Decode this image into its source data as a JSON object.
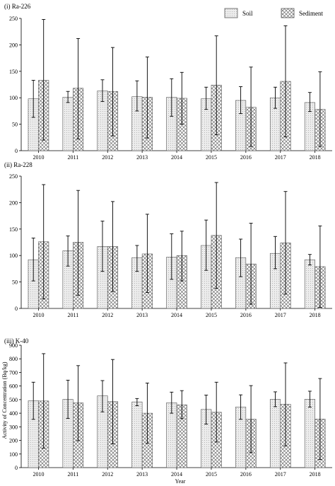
{
  "legend": {
    "soil_label": "Soil",
    "sediment_label": "Sediment"
  },
  "colors": {
    "soil_fill": "#ececec",
    "sediment_fill": "#ffffff",
    "stroke": "#555555",
    "error_bar": "#000000"
  },
  "chart_data": [
    {
      "type": "bar",
      "title": "(i) Ra-226",
      "xlabel": "",
      "ylabel": "",
      "categories": [
        "2010",
        "2011",
        "2012",
        "2013",
        "2014",
        "2015",
        "2016",
        "2017",
        "2018"
      ],
      "ylim": [
        0,
        250
      ],
      "yticks": [
        0,
        50,
        100,
        150,
        200,
        250
      ],
      "series": [
        {
          "name": "Soil",
          "values": [
            98,
            101,
            113,
            102,
            101,
            98,
            95,
            100,
            91
          ],
          "err_low": [
            63,
            91,
            93,
            75,
            65,
            78,
            70,
            80,
            74
          ],
          "err_high": [
            133,
            112,
            134,
            132,
            136,
            120,
            121,
            120,
            110
          ]
        },
        {
          "name": "Sediment",
          "values": [
            133,
            118,
            112,
            101,
            99,
            124,
            82,
            131,
            78
          ],
          "err_low": [
            20,
            22,
            28,
            24,
            50,
            30,
            8,
            26,
            8
          ],
          "err_high": [
            248,
            212,
            195,
            177,
            148,
            217,
            158,
            236,
            149
          ]
        }
      ]
    },
    {
      "type": "bar",
      "title": "(ii) Ra-228",
      "xlabel": "",
      "ylabel": "",
      "categories": [
        "2010",
        "2011",
        "2012",
        "2013",
        "2014",
        "2015",
        "2016",
        "2017",
        "2018"
      ],
      "ylim": [
        0,
        250
      ],
      "yticks": [
        0,
        50,
        100,
        150,
        200,
        250
      ],
      "series": [
        {
          "name": "Soil",
          "values": [
            92,
            109,
            117,
            96,
            97,
            119,
            96,
            104,
            92
          ],
          "err_low": [
            52,
            80,
            70,
            70,
            55,
            72,
            60,
            75,
            82
          ],
          "err_high": [
            133,
            137,
            165,
            119,
            141,
            167,
            131,
            136,
            102
          ]
        },
        {
          "name": "Sediment",
          "values": [
            126,
            125,
            117,
            103,
            100,
            138,
            84,
            124,
            79
          ],
          "err_low": [
            18,
            25,
            32,
            30,
            52,
            38,
            8,
            27,
            2
          ],
          "err_high": [
            234,
            223,
            202,
            178,
            146,
            238,
            161,
            221,
            156
          ]
        }
      ]
    },
    {
      "type": "bar",
      "title": "(iii) K-40",
      "xlabel": "Year",
      "ylabel": "Activity of Concentration (Bq/kg)",
      "categories": [
        "2010",
        "2011",
        "2012",
        "2013",
        "2014",
        "2015",
        "2016",
        "2017",
        "2018"
      ],
      "ylim": [
        0,
        900
      ],
      "yticks": [
        0,
        100,
        200,
        300,
        400,
        500,
        600,
        700,
        800,
        900
      ],
      "series": [
        {
          "name": "Soil",
          "values": [
            492,
            502,
            528,
            483,
            477,
            428,
            446,
            502,
            503
          ],
          "err_low": [
            355,
            362,
            410,
            455,
            400,
            320,
            355,
            448,
            445
          ],
          "err_high": [
            628,
            643,
            640,
            508,
            555,
            533,
            535,
            557,
            562
          ]
        },
        {
          "name": "Sediment",
          "values": [
            490,
            476,
            485,
            400,
            462,
            407,
            356,
            466,
            357
          ],
          "err_low": [
            143,
            198,
            175,
            178,
            360,
            188,
            110,
            160,
            60
          ],
          "err_high": [
            838,
            750,
            795,
            622,
            566,
            628,
            603,
            770,
            655
          ]
        }
      ]
    }
  ]
}
